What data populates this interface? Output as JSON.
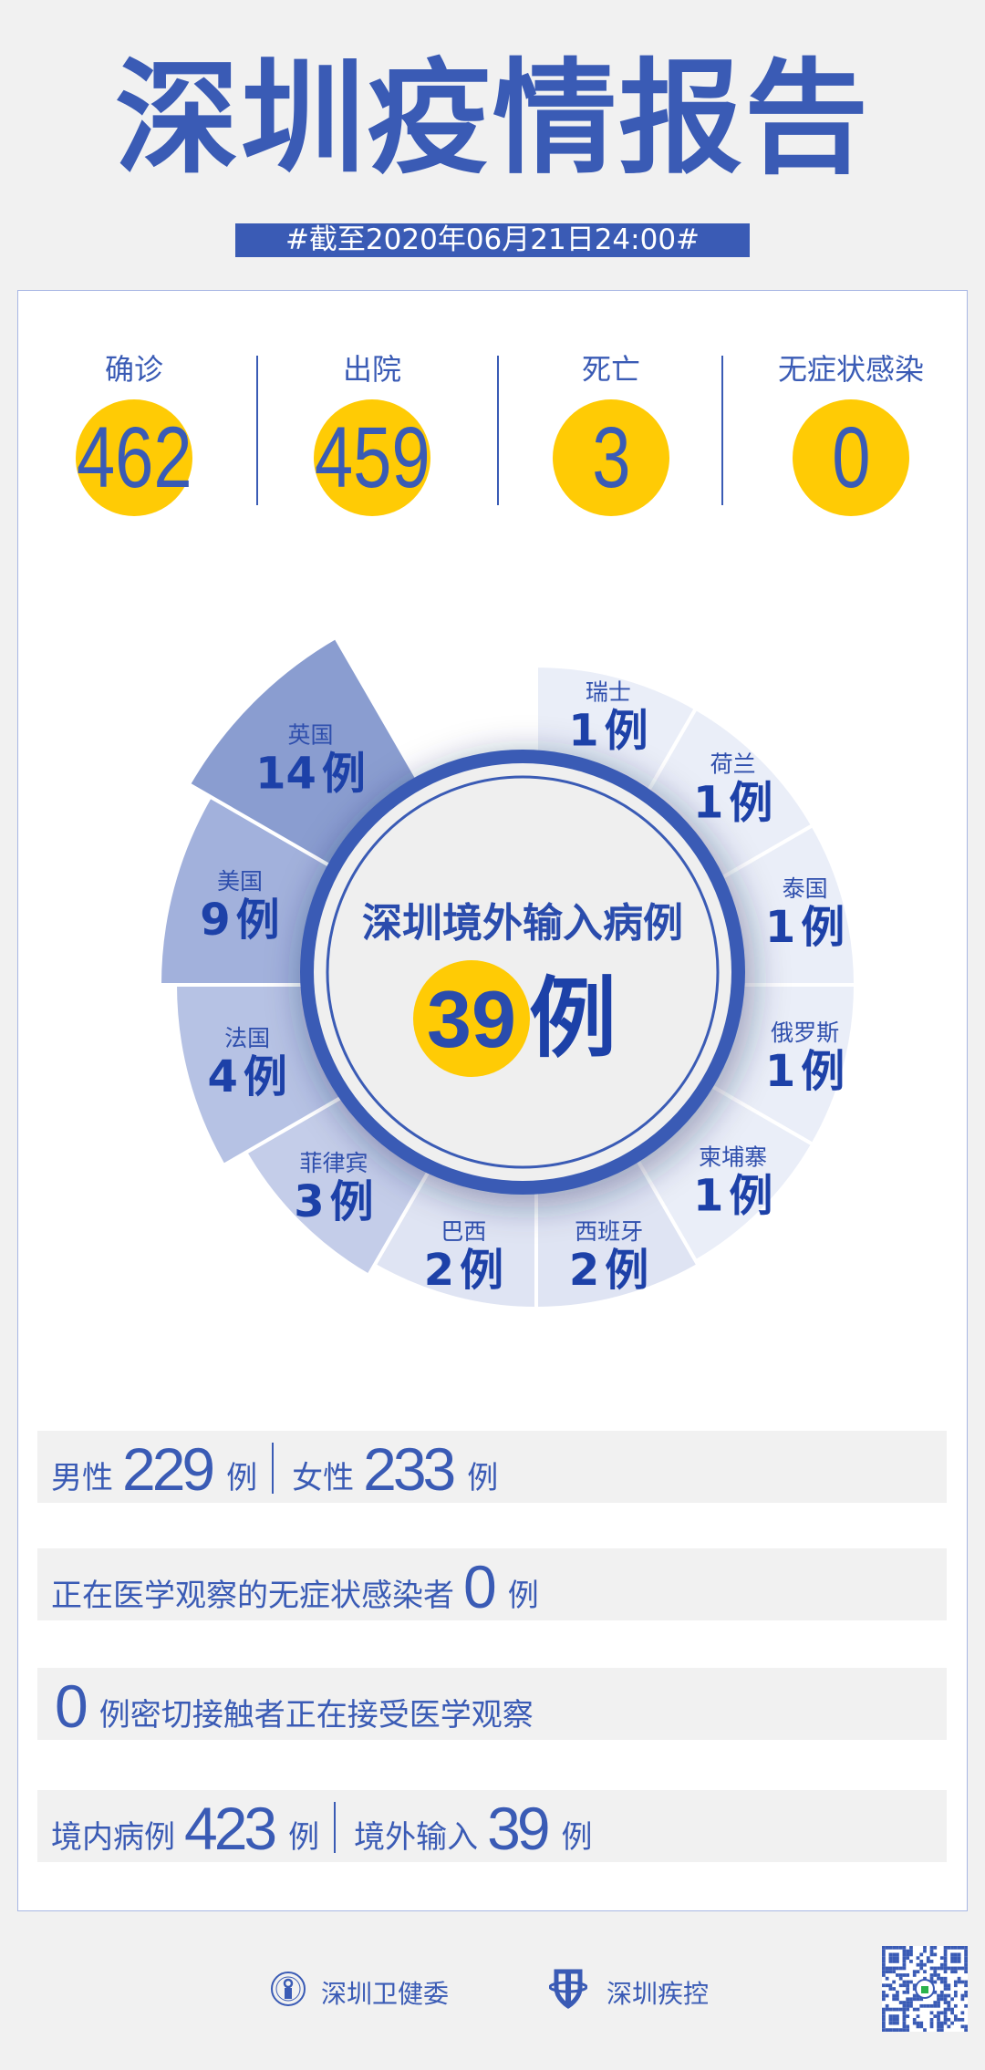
{
  "header": {
    "title": "深圳疫情报告",
    "date_banner": "#截至2020年06月21日24:00#"
  },
  "stats": [
    {
      "label": "确诊",
      "value": "462"
    },
    {
      "label": "出院",
      "value": "459"
    },
    {
      "label": "死亡",
      "value": "3"
    },
    {
      "label": "无症状感染",
      "value": "0"
    }
  ],
  "chart_data": {
    "type": "polar-bar",
    "title": "深圳境外输入病例",
    "total": "39",
    "total_unit": "例",
    "unit": "例",
    "categories": [
      "瑞士",
      "荷兰",
      "泰国",
      "俄罗斯",
      "柬埔寨",
      "西班牙",
      "巴西",
      "菲律宾",
      "法国",
      "美国",
      "英国"
    ],
    "values": [
      1,
      1,
      1,
      1,
      1,
      2,
      2,
      3,
      4,
      9,
      14
    ],
    "colors": [
      "#eaeef8",
      "#eaeef8",
      "#eaeef8",
      "#eaeef8",
      "#eaeef8",
      "#dfe4f3",
      "#dfe4f3",
      "#c4cde9",
      "#b6c2e4",
      "#a2b1dc",
      "#8a9dd0"
    ]
  },
  "rows": [
    {
      "items": [
        {
          "t": "label",
          "v": "男性"
        },
        {
          "t": "num",
          "v": "229"
        },
        {
          "t": "unit",
          "v": "例"
        },
        {
          "t": "sep"
        },
        {
          "t": "label",
          "v": "女性"
        },
        {
          "t": "num",
          "v": "233"
        },
        {
          "t": "unit",
          "v": "例"
        }
      ]
    },
    {
      "items": [
        {
          "t": "label",
          "v": "正在医学观察的无症状感染者"
        },
        {
          "t": "num",
          "v": "0"
        },
        {
          "t": "unit",
          "v": "例"
        }
      ]
    },
    {
      "items": [
        {
          "t": "num",
          "v": "0"
        },
        {
          "t": "label",
          "v": "例密切接触者正在接受医学观察"
        }
      ]
    },
    {
      "items": [
        {
          "t": "label",
          "v": "境内病例"
        },
        {
          "t": "num",
          "v": "423"
        },
        {
          "t": "unit",
          "v": "例"
        },
        {
          "t": "sep"
        },
        {
          "t": "label",
          "v": "境外输入"
        },
        {
          "t": "num",
          "v": "39"
        },
        {
          "t": "unit",
          "v": "例"
        }
      ]
    }
  ],
  "footer": {
    "org1": "深圳卫健委",
    "org2": "深圳疾控",
    "org1_icon": "health-commission-emblem-icon",
    "org2_icon": "cdc-shield-icon",
    "qr_icon": "qr-code-icon"
  },
  "colors": {
    "brand_blue": "#3a5bb5",
    "value_blue": "#1d41a8",
    "accent_yellow": "#ffcb05",
    "background": "#f1f1f1"
  }
}
